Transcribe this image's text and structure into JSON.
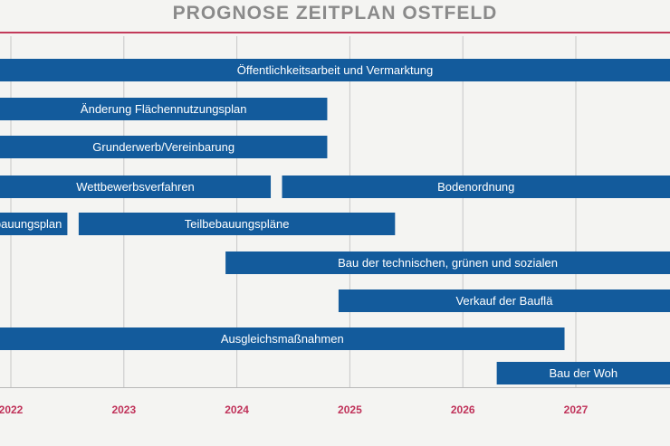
{
  "title": "PROGNOSE ZEITPLAN OSTFELD",
  "colors": {
    "bar": "#135b9c",
    "year_label": "#c0325a",
    "title": "#8a8a8a",
    "grid": "#c7c7c7"
  },
  "chart_data": {
    "type": "bar",
    "orientation": "horizontal-gantt",
    "title": "PROGNOSE ZEITPLAN OSTFELD",
    "xlabel": "",
    "ylabel": "",
    "x_ticks": [
      "2022",
      "2023",
      "2024",
      "2025",
      "2026",
      "2027"
    ],
    "xlim": [
      2021.9,
      2028.0
    ],
    "grid": true,
    "tasks": [
      {
        "label": "Öffentlichkeitsarbeit und Vermarktung",
        "start": 2021.9,
        "end": 2028.0
      },
      {
        "label": "Änderung Flächennutzungsplan",
        "start": 2021.9,
        "end": 2024.8
      },
      {
        "label": "Grunderwerb/Vereinbarung",
        "start": 2021.9,
        "end": 2024.8
      },
      {
        "label": "Wettbewerbsverfahren",
        "start": 2021.9,
        "end": 2024.3
      },
      {
        "label": "Bodenordnung",
        "start": 2024.4,
        "end": 2028.0
      },
      {
        "label": "ebauungsplan",
        "start": 2021.9,
        "end": 2022.5
      },
      {
        "label": "Teilbebauungspläne",
        "start": 2022.6,
        "end": 2025.4
      },
      {
        "label": "Bau der technischen, grünen und sozialen",
        "start": 2023.9,
        "end": 2028.0
      },
      {
        "label": "Verkauf der Bauflä",
        "start": 2024.9,
        "end": 2028.0
      },
      {
        "label": "Ausgleichsmaßnahmen",
        "start": 2021.9,
        "end": 2026.9
      },
      {
        "label": "Bau der Woh",
        "start": 2026.3,
        "end": 2028.0
      }
    ]
  }
}
